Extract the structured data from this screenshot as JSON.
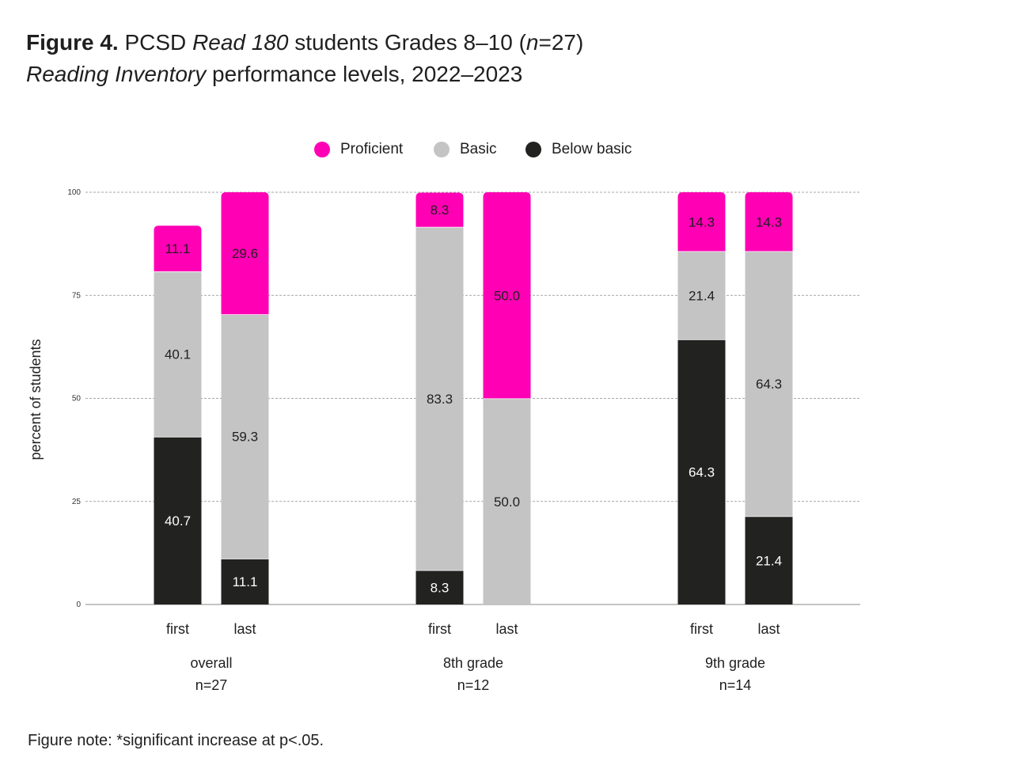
{
  "title": {
    "figure_label": "Figure 4.",
    "line1_pre": "PCSD ",
    "line1_italic": "Read 180",
    "line1_post": " students Grades 8–10 (",
    "line1_n": "n",
    "line1_end": "=27)",
    "line2_italic": "Reading Inventory",
    "line2_post": " performance levels, 2022–2023"
  },
  "legend": [
    {
      "label": "Proficient",
      "color": "#ff00b4"
    },
    {
      "label": "Basic",
      "color": "#c4c4c4"
    },
    {
      "label": "Below basic",
      "color": "#222220"
    }
  ],
  "note": "Figure note: *significant increase at p<.05.",
  "chart_data": {
    "type": "bar",
    "stacked": true,
    "ylabel": "percent of students",
    "ylim": [
      0,
      100
    ],
    "yticks": [
      0,
      25,
      50,
      75,
      100
    ],
    "grid": true,
    "legend_position": "top",
    "groups": [
      {
        "label": "overall",
        "n_label": "n=27",
        "bars": [
          {
            "label": "first",
            "below_basic": 40.7,
            "basic": 40.1,
            "proficient": 11.1
          },
          {
            "label": "last",
            "below_basic": 11.1,
            "basic": 59.3,
            "proficient": 29.6
          }
        ]
      },
      {
        "label": "8th grade",
        "n_label": "n=12",
        "bars": [
          {
            "label": "first",
            "below_basic": 8.3,
            "basic": 83.3,
            "proficient": 8.3
          },
          {
            "label": "last",
            "below_basic": 0,
            "basic": 50.0,
            "proficient": 50.0
          }
        ]
      },
      {
        "label": "9th grade",
        "n_label": "n=14",
        "bars": [
          {
            "label": "first",
            "below_basic": 64.3,
            "basic": 21.4,
            "proficient": 14.3
          },
          {
            "label": "last",
            "below_basic": 21.4,
            "basic": 64.3,
            "proficient": 14.3
          }
        ]
      }
    ]
  }
}
